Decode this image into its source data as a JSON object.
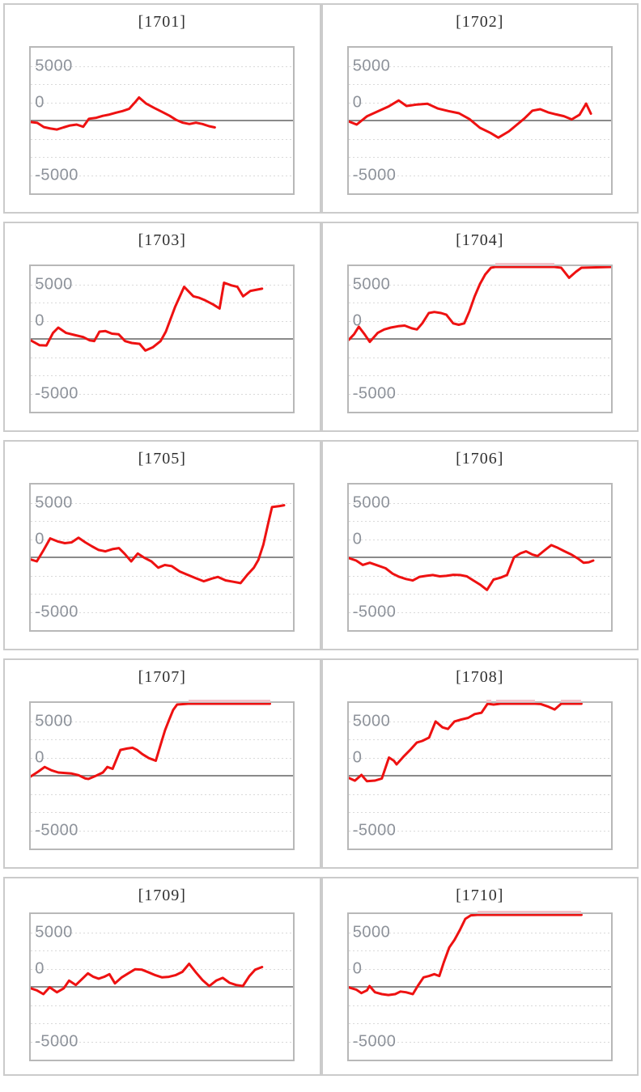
{
  "page": {
    "background": "#ffffff"
  },
  "colors": {
    "series_line": "#ee1111",
    "cap_line": "#f2c3ca",
    "grid_dotted": "#d9d9d9",
    "zero_line": "#8a8a8a",
    "plot_border": "#b8b8b8",
    "card_border": "#cbcbcb",
    "tick_label": "#8d929a",
    "title_text": "#2f2f2f"
  },
  "axis": {
    "tick_labels": [
      "5000",
      "0",
      "-5000"
    ],
    "ylim": [
      -5000,
      5000
    ],
    "grid_interval": 1250,
    "zero_line_solid": true,
    "grid": "horizontal-dotted"
  },
  "chart_data": [
    {
      "type": "line",
      "title": "[1701]",
      "ylabel_ticks": [
        "5000",
        "0",
        "-5000"
      ],
      "caps": [],
      "points": [
        [
          0,
          -100
        ],
        [
          0.025,
          -160
        ],
        [
          0.05,
          -450
        ],
        [
          0.075,
          -550
        ],
        [
          0.1,
          -615
        ],
        [
          0.125,
          -470
        ],
        [
          0.15,
          -340
        ],
        [
          0.175,
          -280
        ],
        [
          0.2,
          -430
        ],
        [
          0.222,
          120
        ],
        [
          0.25,
          190
        ],
        [
          0.275,
          320
        ],
        [
          0.3,
          410
        ],
        [
          0.325,
          540
        ],
        [
          0.35,
          650
        ],
        [
          0.375,
          800
        ],
        [
          0.4,
          1300
        ],
        [
          0.413,
          1585
        ],
        [
          0.44,
          1160
        ],
        [
          0.47,
          875
        ],
        [
          0.5,
          600
        ],
        [
          0.53,
          320
        ],
        [
          0.555,
          40
        ],
        [
          0.58,
          -150
        ],
        [
          0.605,
          -240
        ],
        [
          0.63,
          -150
        ],
        [
          0.655,
          -240
        ],
        [
          0.68,
          -390
        ],
        [
          0.702,
          -470
        ]
      ]
    },
    {
      "type": "line",
      "title": "[1702]",
      "ylabel_ticks": [
        "5000",
        "0",
        "-5000"
      ],
      "caps": [],
      "points": [
        [
          0,
          -60
        ],
        [
          0.03,
          -280
        ],
        [
          0.07,
          300
        ],
        [
          0.11,
          620
        ],
        [
          0.15,
          950
        ],
        [
          0.19,
          1380
        ],
        [
          0.22,
          1000
        ],
        [
          0.26,
          1100
        ],
        [
          0.3,
          1150
        ],
        [
          0.34,
          820
        ],
        [
          0.38,
          650
        ],
        [
          0.42,
          500
        ],
        [
          0.46,
          100
        ],
        [
          0.5,
          -500
        ],
        [
          0.54,
          -850
        ],
        [
          0.57,
          -1175
        ],
        [
          0.61,
          -750
        ],
        [
          0.64,
          -300
        ],
        [
          0.67,
          150
        ],
        [
          0.7,
          680
        ],
        [
          0.73,
          780
        ],
        [
          0.76,
          560
        ],
        [
          0.79,
          420
        ],
        [
          0.82,
          300
        ],
        [
          0.85,
          80
        ],
        [
          0.88,
          400
        ],
        [
          0.905,
          1160
        ],
        [
          0.923,
          470
        ]
      ]
    },
    {
      "type": "line",
      "title": "[1703]",
      "ylabel_ticks": [
        "5000",
        "0",
        "-5000"
      ],
      "caps": [],
      "points": [
        [
          0,
          -100
        ],
        [
          0.033,
          -430
        ],
        [
          0.06,
          -450
        ],
        [
          0.085,
          410
        ],
        [
          0.105,
          780
        ],
        [
          0.135,
          410
        ],
        [
          0.165,
          280
        ],
        [
          0.2,
          130
        ],
        [
          0.225,
          -100
        ],
        [
          0.242,
          -150
        ],
        [
          0.262,
          500
        ],
        [
          0.285,
          540
        ],
        [
          0.31,
          360
        ],
        [
          0.335,
          320
        ],
        [
          0.36,
          -150
        ],
        [
          0.385,
          -280
        ],
        [
          0.415,
          -340
        ],
        [
          0.437,
          -800
        ],
        [
          0.465,
          -580
        ],
        [
          0.495,
          -150
        ],
        [
          0.515,
          500
        ],
        [
          0.55,
          2180
        ],
        [
          0.585,
          3580
        ],
        [
          0.62,
          2930
        ],
        [
          0.64,
          2840
        ],
        [
          0.665,
          2650
        ],
        [
          0.695,
          2370
        ],
        [
          0.72,
          2090
        ],
        [
          0.737,
          3860
        ],
        [
          0.765,
          3680
        ],
        [
          0.788,
          3580
        ],
        [
          0.81,
          2930
        ],
        [
          0.838,
          3300
        ],
        [
          0.882,
          3450
        ]
      ]
    },
    {
      "type": "line",
      "title": "[1704]",
      "ylabel_ticks": [
        "5000",
        "0",
        "-5000"
      ],
      "caps": [
        [
          0.558,
          0.784
        ]
      ],
      "points": [
        [
          0,
          -60
        ],
        [
          0.02,
          320
        ],
        [
          0.038,
          840
        ],
        [
          0.06,
          320
        ],
        [
          0.08,
          -205
        ],
        [
          0.11,
          410
        ],
        [
          0.135,
          650
        ],
        [
          0.16,
          780
        ],
        [
          0.188,
          875
        ],
        [
          0.213,
          915
        ],
        [
          0.24,
          730
        ],
        [
          0.26,
          650
        ],
        [
          0.28,
          1065
        ],
        [
          0.305,
          1775
        ],
        [
          0.326,
          1850
        ],
        [
          0.352,
          1775
        ],
        [
          0.372,
          1660
        ],
        [
          0.398,
          1065
        ],
        [
          0.419,
          970
        ],
        [
          0.44,
          1065
        ],
        [
          0.46,
          1900
        ],
        [
          0.48,
          2930
        ],
        [
          0.5,
          3770
        ],
        [
          0.52,
          4420
        ],
        [
          0.542,
          4890
        ],
        [
          0.558,
          5100
        ],
        [
          0.784,
          5100
        ],
        [
          0.81,
          4890
        ],
        [
          0.84,
          4200
        ],
        [
          0.866,
          4610
        ],
        [
          0.887,
          4890
        ],
        [
          1.0,
          5050
        ]
      ]
    },
    {
      "type": "line",
      "title": "[1705]",
      "ylabel_ticks": [
        "5000",
        "0",
        "-5000"
      ],
      "caps": [],
      "points": [
        [
          0,
          -150
        ],
        [
          0.023,
          -280
        ],
        [
          0.048,
          470
        ],
        [
          0.074,
          1300
        ],
        [
          0.105,
          1080
        ],
        [
          0.13,
          970
        ],
        [
          0.156,
          1025
        ],
        [
          0.182,
          1345
        ],
        [
          0.208,
          1025
        ],
        [
          0.234,
          750
        ],
        [
          0.259,
          505
        ],
        [
          0.285,
          410
        ],
        [
          0.311,
          560
        ],
        [
          0.336,
          635
        ],
        [
          0.357,
          260
        ],
        [
          0.383,
          -280
        ],
        [
          0.408,
          260
        ],
        [
          0.434,
          -40
        ],
        [
          0.46,
          -280
        ],
        [
          0.486,
          -710
        ],
        [
          0.511,
          -530
        ],
        [
          0.537,
          -600
        ],
        [
          0.568,
          -975
        ],
        [
          0.6,
          -1215
        ],
        [
          0.63,
          -1440
        ],
        [
          0.66,
          -1645
        ],
        [
          0.69,
          -1460
        ],
        [
          0.714,
          -1345
        ],
        [
          0.743,
          -1585
        ],
        [
          0.772,
          -1680
        ],
        [
          0.8,
          -1770
        ],
        [
          0.825,
          -1215
        ],
        [
          0.851,
          -710
        ],
        [
          0.868,
          -185
        ],
        [
          0.887,
          875
        ],
        [
          0.907,
          2460
        ],
        [
          0.92,
          3450
        ],
        [
          0.949,
          3525
        ],
        [
          0.966,
          3580
        ]
      ]
    },
    {
      "type": "line",
      "title": "[1706]",
      "ylabel_ticks": [
        "5000",
        "0",
        "-5000"
      ],
      "caps": [],
      "points": [
        [
          0,
          -50
        ],
        [
          0.028,
          -220
        ],
        [
          0.053,
          -520
        ],
        [
          0.08,
          -370
        ],
        [
          0.11,
          -560
        ],
        [
          0.14,
          -750
        ],
        [
          0.167,
          -1120
        ],
        [
          0.192,
          -1340
        ],
        [
          0.218,
          -1490
        ],
        [
          0.244,
          -1590
        ],
        [
          0.27,
          -1340
        ],
        [
          0.295,
          -1270
        ],
        [
          0.32,
          -1215
        ],
        [
          0.347,
          -1305
        ],
        [
          0.372,
          -1270
        ],
        [
          0.398,
          -1200
        ],
        [
          0.424,
          -1215
        ],
        [
          0.45,
          -1305
        ],
        [
          0.475,
          -1590
        ],
        [
          0.5,
          -1865
        ],
        [
          0.527,
          -2240
        ],
        [
          0.552,
          -1530
        ],
        [
          0.578,
          -1400
        ],
        [
          0.603,
          -1215
        ],
        [
          0.63,
          0
        ],
        [
          0.655,
          280
        ],
        [
          0.676,
          410
        ],
        [
          0.7,
          190
        ],
        [
          0.72,
          90
        ],
        [
          0.746,
          470
        ],
        [
          0.772,
          840
        ],
        [
          0.797,
          650
        ],
        [
          0.823,
          410
        ],
        [
          0.849,
          190
        ],
        [
          0.874,
          -90
        ],
        [
          0.895,
          -370
        ],
        [
          0.915,
          -340
        ],
        [
          0.932,
          -220
        ]
      ]
    },
    {
      "type": "line",
      "title": "[1707]",
      "ylabel_ticks": [
        "5000",
        "0",
        "-5000"
      ],
      "caps": [
        [
          0.6,
          0.912
        ]
      ],
      "points": [
        [
          0,
          -50
        ],
        [
          0.028,
          280
        ],
        [
          0.053,
          600
        ],
        [
          0.079,
          370
        ],
        [
          0.105,
          220
        ],
        [
          0.13,
          190
        ],
        [
          0.156,
          150
        ],
        [
          0.182,
          40
        ],
        [
          0.208,
          -190
        ],
        [
          0.22,
          -225
        ],
        [
          0.249,
          0
        ],
        [
          0.275,
          220
        ],
        [
          0.292,
          600
        ],
        [
          0.312,
          470
        ],
        [
          0.342,
          1770
        ],
        [
          0.367,
          1865
        ],
        [
          0.388,
          1920
        ],
        [
          0.405,
          1770
        ],
        [
          0.425,
          1490
        ],
        [
          0.45,
          1210
        ],
        [
          0.477,
          1025
        ],
        [
          0.496,
          2180
        ],
        [
          0.512,
          3120
        ],
        [
          0.528,
          3860
        ],
        [
          0.543,
          4510
        ],
        [
          0.558,
          4890
        ],
        [
          0.6,
          5100
        ],
        [
          0.912,
          5100
        ]
      ]
    },
    {
      "type": "line",
      "title": "[1708]",
      "ylabel_ticks": [
        "5000",
        "0",
        "-5000"
      ],
      "caps": [
        [
          0.525,
          0.545
        ],
        [
          0.562,
          0.712
        ],
        [
          0.808,
          0.887
        ]
      ],
      "points": [
        [
          0,
          -150
        ],
        [
          0.023,
          -340
        ],
        [
          0.048,
          55
        ],
        [
          0.069,
          -375
        ],
        [
          0.1,
          -335
        ],
        [
          0.126,
          -190
        ],
        [
          0.153,
          1250
        ],
        [
          0.172,
          1025
        ],
        [
          0.182,
          780
        ],
        [
          0.208,
          1300
        ],
        [
          0.234,
          1770
        ],
        [
          0.259,
          2275
        ],
        [
          0.28,
          2390
        ],
        [
          0.306,
          2615
        ],
        [
          0.331,
          3730
        ],
        [
          0.357,
          3320
        ],
        [
          0.378,
          3210
        ],
        [
          0.403,
          3730
        ],
        [
          0.429,
          3860
        ],
        [
          0.455,
          3975
        ],
        [
          0.48,
          4235
        ],
        [
          0.506,
          4330
        ],
        [
          0.529,
          5100
        ],
        [
          0.552,
          4890
        ],
        [
          0.578,
          5100
        ],
        [
          0.71,
          5100
        ],
        [
          0.732,
          4920
        ],
        [
          0.758,
          4760
        ],
        [
          0.785,
          4550
        ],
        [
          0.81,
          5100
        ],
        [
          0.887,
          5100
        ]
      ]
    },
    {
      "type": "line",
      "title": "[1709]",
      "ylabel_ticks": [
        "5000",
        "0",
        "-5000"
      ],
      "caps": [],
      "points": [
        [
          0,
          -100
        ],
        [
          0.023,
          -240
        ],
        [
          0.048,
          -500
        ],
        [
          0.072,
          -30
        ],
        [
          0.1,
          -370
        ],
        [
          0.126,
          -100
        ],
        [
          0.146,
          430
        ],
        [
          0.172,
          130
        ],
        [
          0.197,
          560
        ],
        [
          0.218,
          930
        ],
        [
          0.239,
          690
        ],
        [
          0.259,
          560
        ],
        [
          0.28,
          690
        ],
        [
          0.3,
          875
        ],
        [
          0.321,
          240
        ],
        [
          0.347,
          650
        ],
        [
          0.372,
          930
        ],
        [
          0.398,
          1210
        ],
        [
          0.424,
          1175
        ],
        [
          0.45,
          990
        ],
        [
          0.475,
          800
        ],
        [
          0.501,
          650
        ],
        [
          0.527,
          690
        ],
        [
          0.552,
          800
        ],
        [
          0.578,
          1025
        ],
        [
          0.604,
          1585
        ],
        [
          0.63,
          990
        ],
        [
          0.655,
          465
        ],
        [
          0.681,
          55
        ],
        [
          0.707,
          430
        ],
        [
          0.732,
          615
        ],
        [
          0.758,
          280
        ],
        [
          0.783,
          130
        ],
        [
          0.809,
          55
        ],
        [
          0.834,
          745
        ],
        [
          0.856,
          1175
        ],
        [
          0.882,
          1360
        ]
      ]
    },
    {
      "type": "line",
      "title": "[1710]",
      "ylabel_ticks": [
        "5000",
        "0",
        "-5000"
      ],
      "caps": [
        [
          0.49,
          0.887
        ]
      ],
      "points": [
        [
          0,
          -40
        ],
        [
          0.028,
          -190
        ],
        [
          0.048,
          -430
        ],
        [
          0.069,
          -240
        ],
        [
          0.079,
          55
        ],
        [
          0.1,
          -370
        ],
        [
          0.126,
          -500
        ],
        [
          0.151,
          -560
        ],
        [
          0.177,
          -500
        ],
        [
          0.197,
          -320
        ],
        [
          0.218,
          -370
        ],
        [
          0.244,
          -500
        ],
        [
          0.264,
          90
        ],
        [
          0.285,
          650
        ],
        [
          0.306,
          745
        ],
        [
          0.326,
          875
        ],
        [
          0.345,
          745
        ],
        [
          0.362,
          1680
        ],
        [
          0.383,
          2705
        ],
        [
          0.403,
          3230
        ],
        [
          0.424,
          3920
        ],
        [
          0.444,
          4665
        ],
        [
          0.465,
          4910
        ],
        [
          0.49,
          5100
        ],
        [
          0.887,
          5100
        ]
      ]
    }
  ]
}
